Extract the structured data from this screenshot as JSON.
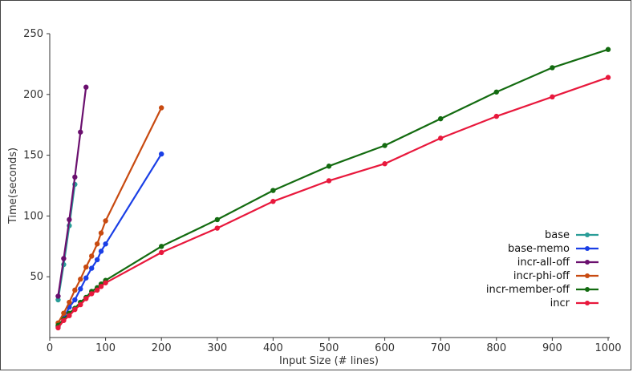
{
  "chart_data": {
    "type": "line",
    "title": "",
    "xlabel": "Input Size (# lines)",
    "ylabel": "Time(seconds)",
    "xlim": [
      0,
      1000
    ],
    "ylim": [
      0,
      250
    ],
    "x_ticks": [
      "0",
      "100",
      "200",
      "300",
      "400",
      "500",
      "600",
      "700",
      "800",
      "900",
      "1000"
    ],
    "y_ticks": [
      "50",
      "100",
      "150",
      "200",
      "250"
    ],
    "legend_position": "right",
    "grid": false,
    "series": [
      {
        "name": "base",
        "color": "#2a9d98",
        "points": [
          [
            15,
            31
          ],
          [
            25,
            60
          ],
          [
            35,
            92
          ],
          [
            45,
            126
          ]
        ]
      },
      {
        "name": "base-memo",
        "color": "#1a3fe6",
        "points": [
          [
            15,
            9
          ],
          [
            25,
            16
          ],
          [
            35,
            25
          ],
          [
            45,
            31
          ],
          [
            55,
            40
          ],
          [
            65,
            49
          ],
          [
            75,
            57
          ],
          [
            85,
            64
          ],
          [
            92,
            71
          ],
          [
            100,
            77
          ],
          [
            200,
            151
          ]
        ]
      },
      {
        "name": "incr-all-off",
        "color": "#6a0f6e",
        "points": [
          [
            15,
            34
          ],
          [
            25,
            65
          ],
          [
            35,
            97
          ],
          [
            45,
            132
          ],
          [
            55,
            169
          ],
          [
            65,
            206
          ]
        ]
      },
      {
        "name": "incr-phi-off",
        "color": "#c84a10",
        "points": [
          [
            15,
            12
          ],
          [
            25,
            20
          ],
          [
            35,
            29
          ],
          [
            45,
            39
          ],
          [
            55,
            48
          ],
          [
            65,
            58
          ],
          [
            75,
            67
          ],
          [
            85,
            77
          ],
          [
            92,
            86
          ],
          [
            100,
            96
          ],
          [
            200,
            189
          ]
        ]
      },
      {
        "name": "incr-member-off",
        "color": "#136b10",
        "points": [
          [
            15,
            10
          ],
          [
            25,
            15
          ],
          [
            35,
            20
          ],
          [
            45,
            24
          ],
          [
            55,
            29
          ],
          [
            65,
            33
          ],
          [
            75,
            38
          ],
          [
            85,
            41
          ],
          [
            92,
            44
          ],
          [
            100,
            47
          ],
          [
            200,
            75
          ],
          [
            300,
            97
          ],
          [
            400,
            121
          ],
          [
            500,
            141
          ],
          [
            600,
            158
          ],
          [
            700,
            180
          ],
          [
            800,
            202
          ],
          [
            900,
            222
          ],
          [
            1000,
            237
          ]
        ]
      },
      {
        "name": "incr",
        "color": "#e8183c",
        "points": [
          [
            15,
            8
          ],
          [
            25,
            14
          ],
          [
            35,
            18
          ],
          [
            45,
            23
          ],
          [
            55,
            27
          ],
          [
            65,
            32
          ],
          [
            75,
            36
          ],
          [
            85,
            39
          ],
          [
            92,
            42
          ],
          [
            100,
            45
          ],
          [
            200,
            70
          ],
          [
            300,
            90
          ],
          [
            400,
            112
          ],
          [
            500,
            129
          ],
          [
            600,
            143
          ],
          [
            700,
            164
          ],
          [
            800,
            182
          ],
          [
            900,
            198
          ],
          [
            1000,
            214
          ]
        ]
      }
    ]
  }
}
